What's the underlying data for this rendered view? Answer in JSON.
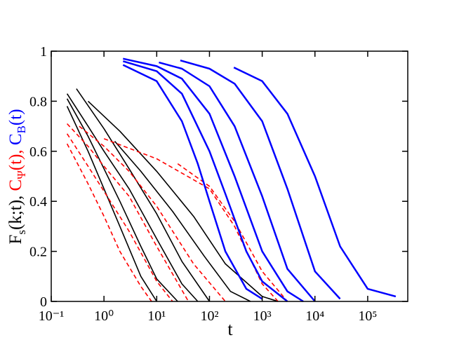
{
  "chart_data": {
    "type": "line",
    "xlabel": "t",
    "ylabel": [
      {
        "text": "F",
        "sub": "s",
        "after": "(k;t),",
        "color": "#000000"
      },
      {
        "text": "C",
        "sub": "Ψ",
        "after": "(t),",
        "color": "#ff0000"
      },
      {
        "text": "C",
        "sub": "B",
        "after": "(t)",
        "color": "#0000ff"
      }
    ],
    "xscale": "log",
    "xlim": [
      0.1,
      575000
    ],
    "ylim": [
      0,
      1
    ],
    "xticks": [
      {
        "value": 0.1,
        "label": "10⁻¹"
      },
      {
        "value": 1,
        "label": "10⁰"
      },
      {
        "value": 10,
        "label": "10¹"
      },
      {
        "value": 100,
        "label": "10²"
      },
      {
        "value": 1000,
        "label": "10³"
      },
      {
        "value": 10000,
        "label": "10⁴"
      },
      {
        "value": 100000,
        "label": "10⁵"
      }
    ],
    "yticks": [
      0,
      0.2,
      0.4,
      0.6,
      0.8,
      1
    ],
    "series": [
      {
        "color": "#000000",
        "style": "solid",
        "x": [
          0.2,
          0.5,
          1,
          2,
          5,
          10
        ],
        "values": [
          0.78,
          0.6,
          0.45,
          0.3,
          0.1,
          0.0
        ]
      },
      {
        "color": "#000000",
        "style": "solid",
        "x": [
          0.2,
          0.5,
          1,
          2,
          5,
          10,
          25
        ],
        "values": [
          0.81,
          0.66,
          0.53,
          0.4,
          0.22,
          0.09,
          0.0
        ]
      },
      {
        "color": "#000000",
        "style": "solid",
        "x": [
          0.2,
          0.5,
          1,
          3,
          10,
          30,
          60
        ],
        "values": [
          0.83,
          0.7,
          0.6,
          0.45,
          0.25,
          0.07,
          0.0
        ]
      },
      {
        "color": "#000000",
        "style": "solid",
        "x": [
          0.3,
          1,
          3,
          10,
          30,
          100
        ],
        "values": [
          0.85,
          0.69,
          0.53,
          0.35,
          0.16,
          0.0
        ]
      },
      {
        "color": "#000000",
        "style": "solid",
        "x": [
          1.6,
          5,
          20,
          80,
          250,
          600
        ],
        "values": [
          0.64,
          0.52,
          0.36,
          0.18,
          0.04,
          0.0
        ]
      },
      {
        "color": "#000000",
        "style": "solid",
        "x": [
          0.5,
          2,
          10,
          50,
          200,
          1000,
          2000
        ],
        "values": [
          0.8,
          0.68,
          0.52,
          0.34,
          0.15,
          0.02,
          0.0
        ]
      },
      {
        "color": "#ff0000",
        "style": "dashed",
        "x": [
          0.2,
          0.5,
          1,
          2,
          5,
          8
        ],
        "values": [
          0.63,
          0.47,
          0.34,
          0.2,
          0.06,
          0.0
        ]
      },
      {
        "color": "#ff0000",
        "style": "dashed",
        "x": [
          0.2,
          0.5,
          1,
          3,
          10,
          20
        ],
        "values": [
          0.67,
          0.54,
          0.44,
          0.28,
          0.08,
          0.0
        ]
      },
      {
        "color": "#ff0000",
        "style": "dashed",
        "x": [
          0.2,
          0.5,
          1,
          3,
          10,
          40
        ],
        "values": [
          0.71,
          0.62,
          0.54,
          0.42,
          0.22,
          0.0
        ]
      },
      {
        "color": "#ff0000",
        "style": "dashed",
        "x": [
          0.34,
          1,
          3,
          10,
          50,
          200
        ],
        "values": [
          0.7,
          0.62,
          0.52,
          0.38,
          0.15,
          0.0
        ]
      },
      {
        "color": "#ff0000",
        "style": "dashed",
        "x": [
          1,
          10,
          100,
          300,
          1000,
          2000
        ],
        "values": [
          0.65,
          0.57,
          0.45,
          0.3,
          0.07,
          0.0
        ]
      },
      {
        "color": "#ff0000",
        "style": "dashed",
        "x": [
          25,
          100,
          300,
          1000,
          3000
        ],
        "values": [
          0.55,
          0.46,
          0.32,
          0.12,
          0.0
        ]
      },
      {
        "color": "#0000ff",
        "style": "solid",
        "x": [
          2.3,
          10,
          30,
          60,
          100,
          200,
          500,
          1000
        ],
        "values": [
          0.945,
          0.88,
          0.72,
          0.55,
          0.4,
          0.2,
          0.05,
          0.01
        ]
      },
      {
        "color": "#0000ff",
        "style": "solid",
        "x": [
          2.3,
          10,
          30,
          100,
          200,
          500,
          1000,
          3000
        ],
        "values": [
          0.96,
          0.92,
          0.83,
          0.6,
          0.43,
          0.2,
          0.08,
          0.0
        ]
      },
      {
        "color": "#0000ff",
        "style": "solid",
        "x": [
          2.3,
          10,
          30,
          100,
          300,
          1000,
          3000,
          6000
        ],
        "values": [
          0.97,
          0.94,
          0.89,
          0.75,
          0.5,
          0.2,
          0.04,
          0.0
        ]
      },
      {
        "color": "#0000ff",
        "style": "solid",
        "x": [
          11,
          30,
          100,
          300,
          1000,
          3000,
          10000
        ],
        "values": [
          0.955,
          0.93,
          0.86,
          0.7,
          0.42,
          0.13,
          0.0
        ]
      },
      {
        "color": "#0000ff",
        "style": "solid",
        "x": [
          28,
          100,
          300,
          1000,
          3000,
          10000,
          30000
        ],
        "values": [
          0.963,
          0.93,
          0.87,
          0.72,
          0.45,
          0.12,
          0.01
        ]
      },
      {
        "color": "#0000ff",
        "style": "solid",
        "x": [
          290,
          1000,
          3000,
          10000,
          30000,
          100000,
          340000
        ],
        "values": [
          0.935,
          0.88,
          0.75,
          0.5,
          0.22,
          0.05,
          0.02
        ]
      }
    ]
  }
}
